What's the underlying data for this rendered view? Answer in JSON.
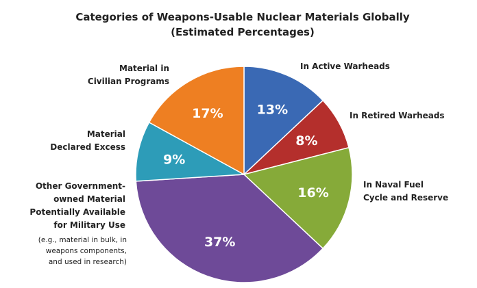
{
  "chart_data": {
    "type": "pie",
    "title": "Categories of Weapons-Usable Nuclear Materials Globally",
    "subtitle": "(Estimated Percentages)",
    "slices": [
      {
        "key": "active-warheads",
        "label": [
          "In Active Warheads"
        ],
        "value": 13,
        "pct_label": "13%",
        "color": "#3a69b4"
      },
      {
        "key": "retired-warheads",
        "label": [
          "In Retired Warheads"
        ],
        "value": 8,
        "pct_label": "8%",
        "color": "#b42f2c"
      },
      {
        "key": "naval-fuel",
        "label": [
          "In Naval Fuel",
          "Cycle and Reserve"
        ],
        "value": 16,
        "pct_label": "16%",
        "color": "#86aa39"
      },
      {
        "key": "other-government",
        "label": [
          "Other Government-",
          "owned Material",
          "Potentially Available",
          "for Military Use"
        ],
        "note": [
          "(e.g., material in bulk, in",
          "weapons components,",
          "and used in research)"
        ],
        "value": 37,
        "pct_label": "37%",
        "color": "#6e4a98"
      },
      {
        "key": "declared-excess",
        "label": [
          "Material",
          "Declared Excess"
        ],
        "value": 9,
        "pct_label": "9%",
        "color": "#2d9cb8"
      },
      {
        "key": "civilian-programs",
        "label": [
          "Material in",
          "Civilian Programs"
        ],
        "value": 17,
        "pct_label": "17%",
        "color": "#ee7f22"
      }
    ]
  }
}
